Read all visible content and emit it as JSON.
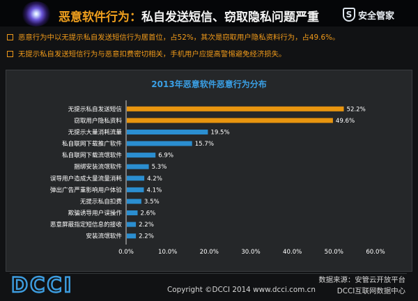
{
  "header": {
    "title_prefix": "恶意软件行为：",
    "title_suffix": "私自发送短信、窃取隐私问题严重",
    "brand": "安全管家",
    "brand_icon": "shield-s-icon"
  },
  "bullets": [
    "恶意行为中以无提示私自发送短信行为居首位，占52%，其次是窃取用户隐私资料行为，占49.6%。",
    "无提示私自发送短信行为与恶意扣费密切相关，手机用户应提高警惕避免经济损失。"
  ],
  "chart_data": {
    "type": "bar",
    "orientation": "horizontal",
    "title": "2013年恶意软件恶意行为分布",
    "categories": [
      "无提示私自发送短信",
      "窃取用户隐私资料",
      "无提示大量消耗流量",
      "私自联网下载推广软件",
      "私自联网下载流氓软件",
      "捆绑安装流氓软件",
      "误导用户造成大量流量消耗",
      "弹出广告严重影响用户体验",
      "无提示私自扣费",
      "欺骗诱导用户误操作",
      "恶意屏蔽指定短信息的接收",
      "安装流氓软件"
    ],
    "values": [
      52.2,
      49.6,
      19.5,
      15.7,
      6.9,
      5.3,
      4.2,
      4.1,
      3.5,
      2.6,
      2.2,
      2.2
    ],
    "value_labels": [
      "52.2%",
      "49.6%",
      "19.5%",
      "15.7%",
      "6.9%",
      "5.3%",
      "4.2%",
      "4.1%",
      "3.5%",
      "2.6%",
      "2.2%",
      "2.2%"
    ],
    "xlim": [
      0,
      60
    ],
    "xticks": [
      0,
      10,
      20,
      30,
      40,
      50,
      60
    ],
    "xtick_labels": [
      "0.0%",
      "10.0%",
      "20.0%",
      "30.0%",
      "40.0%",
      "50.0%",
      "60.0%"
    ],
    "grid": false,
    "colors": {
      "highlight": "#e8950f",
      "normal": "#2b8ed0"
    },
    "highlight_count": 2
  },
  "footer": {
    "logo_text": "DCCI",
    "copyright": "Copyright ©DCCI 2014 www.dcci.com.cn",
    "source_line1": "数据来源：安管云开放平台",
    "source_line2": "DCCI互联网数据中心"
  }
}
